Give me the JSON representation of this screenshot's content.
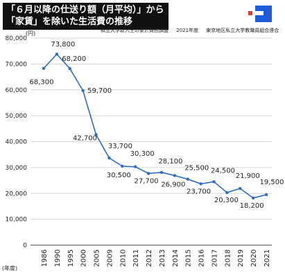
{
  "header": {
    "title_line1": "「６月以降の仕送り額（月平均）」から",
    "title_line2": "「家賃」を除いた生活費の推移"
  },
  "source": {
    "survey": "私立大学新入生の家計負担調査",
    "year": "2021年度",
    "organization": "東京地区私立大学教職員組合連合"
  },
  "colors": {
    "line": "#2B6CC4",
    "title_bg": "#111111",
    "logo_blue": "#1E5BD8",
    "logo_red": "#E03A2F",
    "grid": "#d6d6d6"
  },
  "chart_data": {
    "type": "line",
    "title": "「６月以降の仕送り額（月平均）」から「家賃」を除いた生活費の推移",
    "ylabel": "(円)",
    "xlabel": "(年度)",
    "ylim": [
      0,
      80000
    ],
    "yticks": [
      0,
      10000,
      20000,
      30000,
      40000,
      50000,
      60000,
      70000,
      80000
    ],
    "ytick_labels": [
      "0",
      "10,000",
      "20,000",
      "30,000",
      "40,000",
      "50,000",
      "60,000",
      "70,000",
      "80,000"
    ],
    "grid": true,
    "categories": [
      "1986",
      "1990",
      "1995",
      "2000",
      "2005",
      "2009",
      "2010",
      "2011",
      "2012",
      "2013",
      "2014",
      "2015",
      "2016",
      "2017",
      "2018",
      "2019",
      "2020",
      "2021"
    ],
    "series": [
      {
        "values": [
          68300,
          73800,
          68200,
          59700,
          42700,
          33700,
          30500,
          30300,
          27700,
          28100,
          26900,
          25500,
          23700,
          24500,
          20300,
          21900,
          18200,
          19500
        ],
        "labels": [
          "68,300",
          "73,800",
          "68,200",
          "59,700",
          "42,700",
          "33,700",
          "30,500",
          "30,300",
          "27,700",
          "28,100",
          "26,900",
          "25,500",
          "23,700",
          "24,500",
          "20,300",
          "21,900",
          "18,200",
          "19,500"
        ]
      }
    ]
  }
}
